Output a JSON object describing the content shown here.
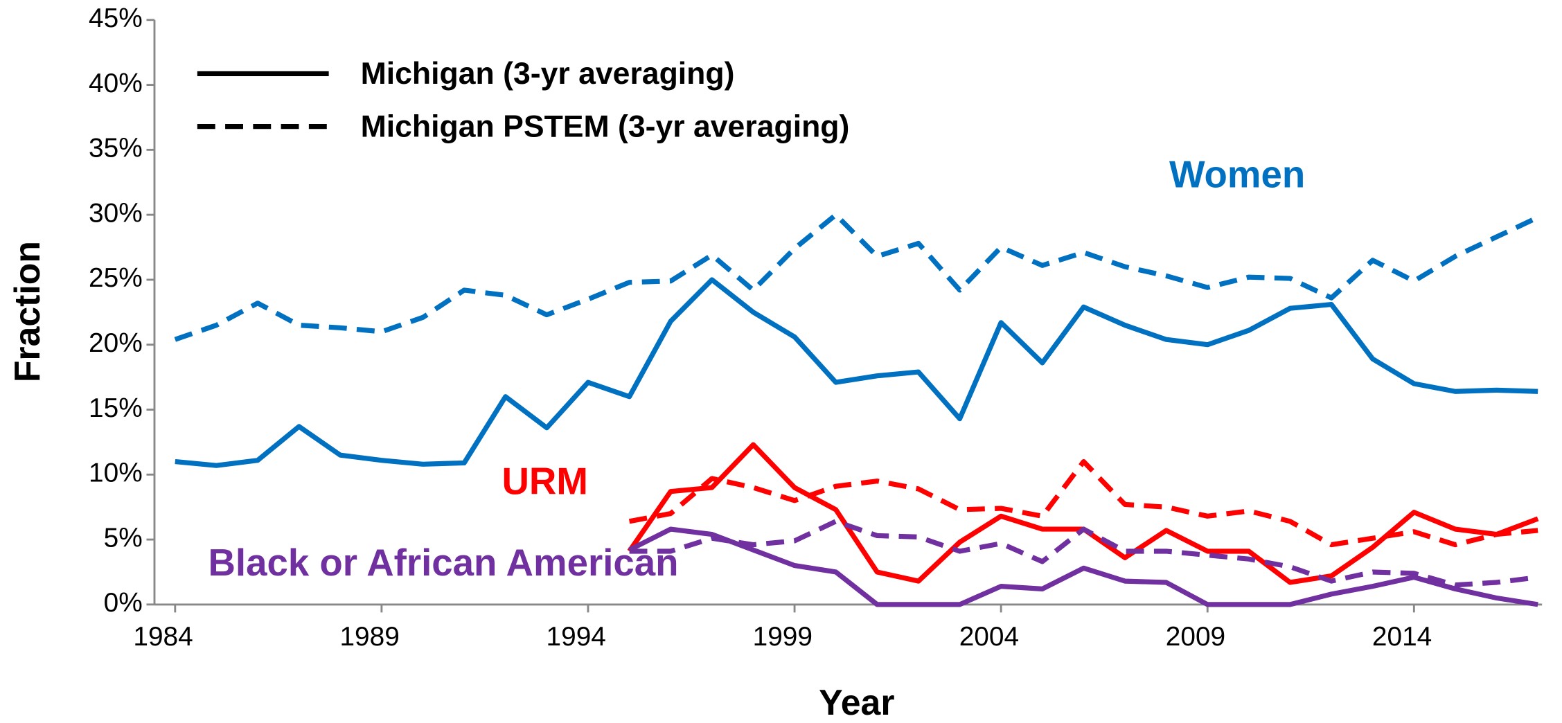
{
  "chart_data": {
    "type": "line",
    "x_label": "Year",
    "y_label": "Fraction",
    "x": [
      1984,
      1985,
      1986,
      1987,
      1988,
      1989,
      1990,
      1991,
      1992,
      1993,
      1994,
      1995,
      1996,
      1997,
      1998,
      1999,
      2000,
      2001,
      2002,
      2003,
      2004,
      2005,
      2006,
      2007,
      2008,
      2009,
      2010,
      2011,
      2012,
      2013,
      2014,
      2015,
      2016,
      2017
    ],
    "xlim": [
      1983.5,
      2017.1
    ],
    "xticks": [
      1984,
      1989,
      1994,
      1999,
      2004,
      2009,
      2014
    ],
    "ylim": [
      0,
      45
    ],
    "yticks": [
      {
        "value": 0,
        "label": "0%"
      },
      {
        "value": 5,
        "label": "5%"
      },
      {
        "value": 10,
        "label": "10%"
      },
      {
        "value": 15,
        "label": "15%"
      },
      {
        "value": 20,
        "label": "20%"
      },
      {
        "value": 25,
        "label": "25%"
      },
      {
        "value": 30,
        "label": "30%"
      },
      {
        "value": 35,
        "label": "35%"
      },
      {
        "value": 40,
        "label": "40%"
      },
      {
        "value": 45,
        "label": "45%"
      }
    ],
    "legend_position": "upper left",
    "styles": [
      {
        "label": "Michigan (3-yr averaging)",
        "dash": false
      },
      {
        "label": "Michigan PSTEM (3-yr averaging)",
        "dash": true
      }
    ],
    "groups": [
      {
        "label": "Women",
        "color": "#0070c0"
      },
      {
        "label": "URM",
        "color": "#ff0000"
      },
      {
        "label": "Black or African American",
        "color": "#7030a0"
      }
    ],
    "series": [
      {
        "group": 0,
        "style": 0,
        "values": [
          11.0,
          10.7,
          11.1,
          13.7,
          11.5,
          11.1,
          10.8,
          10.9,
          16.0,
          13.6,
          17.1,
          16.0,
          21.8,
          25.0,
          22.5,
          20.6,
          17.1,
          17.6,
          17.9,
          14.3,
          21.7,
          18.6,
          22.9,
          21.5,
          20.4,
          20.0,
          21.1,
          22.8,
          23.1,
          18.9,
          17.0,
          16.4,
          16.5,
          16.4
        ]
      },
      {
        "group": 0,
        "style": 1,
        "values": [
          20.4,
          21.5,
          23.2,
          21.5,
          21.3,
          21.0,
          22.1,
          24.2,
          23.8,
          22.3,
          23.5,
          24.8,
          24.9,
          26.9,
          24.2,
          27.4,
          30.0,
          26.8,
          27.8,
          24.2,
          27.5,
          26.1,
          27.1,
          26.0,
          25.3,
          24.4,
          25.2,
          25.1,
          23.6,
          26.5,
          24.9,
          26.8,
          28.3,
          29.8
        ]
      },
      {
        "group": 1,
        "style": 0,
        "values": [
          null,
          null,
          null,
          null,
          null,
          null,
          null,
          null,
          null,
          null,
          null,
          4.1,
          8.7,
          9.0,
          12.3,
          9.0,
          7.3,
          2.5,
          1.8,
          4.8,
          6.8,
          5.8,
          5.8,
          3.6,
          5.7,
          4.1,
          4.1,
          1.7,
          2.2,
          4.4,
          7.1,
          5.8,
          5.4,
          6.6
        ]
      },
      {
        "group": 1,
        "style": 1,
        "values": [
          null,
          null,
          null,
          null,
          null,
          null,
          null,
          null,
          null,
          null,
          null,
          6.4,
          7.0,
          9.7,
          9.0,
          8.0,
          9.1,
          9.5,
          8.9,
          7.3,
          7.4,
          6.8,
          11.0,
          7.7,
          7.5,
          6.8,
          7.2,
          6.4,
          4.6,
          5.1,
          5.6,
          4.6,
          5.4,
          5.7
        ]
      },
      {
        "group": 2,
        "style": 0,
        "values": [
          null,
          null,
          null,
          null,
          null,
          null,
          null,
          null,
          null,
          null,
          null,
          4.2,
          5.8,
          5.4,
          4.2,
          3.0,
          2.5,
          0,
          0,
          0,
          1.4,
          1.2,
          2.8,
          1.8,
          1.7,
          0,
          0,
          0,
          0.8,
          1.4,
          2.1,
          1.2,
          0.5,
          0
        ]
      },
      {
        "group": 2,
        "style": 1,
        "values": [
          null,
          null,
          null,
          null,
          null,
          null,
          null,
          null,
          null,
          null,
          null,
          4.1,
          4.1,
          5.1,
          4.6,
          4.9,
          6.4,
          5.3,
          5.2,
          4.1,
          4.7,
          3.3,
          5.8,
          4.1,
          4.1,
          3.8,
          3.5,
          2.9,
          1.8,
          2.5,
          2.4,
          1.5,
          1.7,
          2.1
        ]
      }
    ]
  }
}
